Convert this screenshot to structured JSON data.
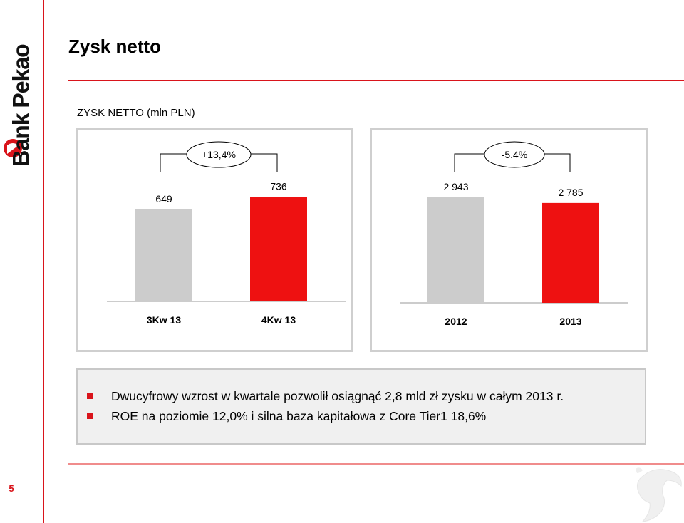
{
  "brand": {
    "name": "Bank Pekao",
    "page_number": "5",
    "accent": "#d9141b"
  },
  "header": {
    "title": "Zysk netto"
  },
  "chart_heading": "ZYSK NETTO (mln PLN)",
  "chart_data": [
    {
      "type": "bar",
      "title": "",
      "categories": [
        "3Kw 13",
        "4Kw 13"
      ],
      "values": [
        649,
        736
      ],
      "value_labels": [
        "649",
        "736"
      ],
      "colors": [
        "#cccccc",
        "#ee1111"
      ],
      "change_label": "+13,4%",
      "ylim": [
        0,
        800
      ],
      "xlabel": "",
      "ylabel": ""
    },
    {
      "type": "bar",
      "title": "",
      "categories": [
        "2012",
        "2013"
      ],
      "values": [
        2943,
        2785
      ],
      "value_labels": [
        "2 943",
        "2 785"
      ],
      "colors": [
        "#cccccc",
        "#ee1111"
      ],
      "change_label": "-5.4%",
      "ylim": [
        0,
        3200
      ],
      "xlabel": "",
      "ylabel": ""
    }
  ],
  "bullets": [
    "Dwucyfrowy wzrost w kwartale pozwolił osiągnąć 2,8 mld zł zysku w całym 2013 r.",
    "ROE na poziomie 12,0% i silna baza kapitałowa z Core Tier1 18,6%"
  ]
}
